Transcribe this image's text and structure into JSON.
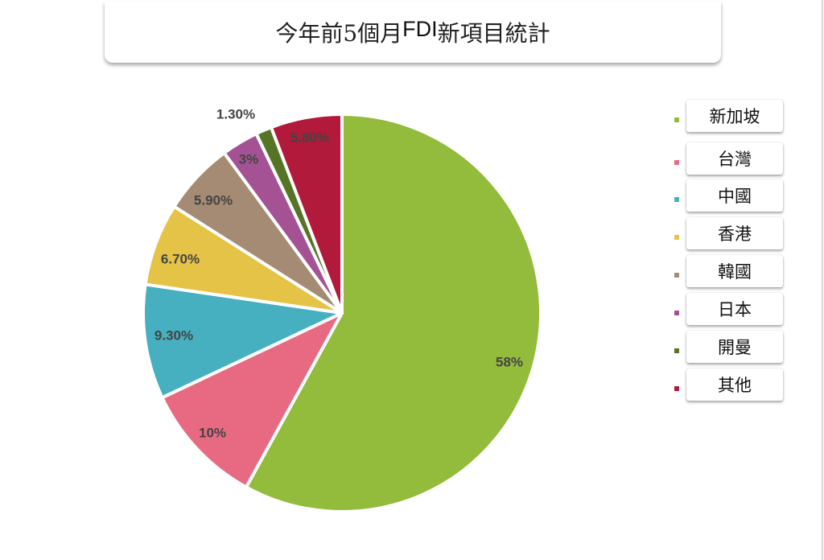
{
  "title": {
    "prefix": "今年前5個月",
    "highlight": "FDI",
    "suffix": "新項目統計"
  },
  "chart_data": {
    "type": "pie",
    "title": "今年前5個月FDI新項目統計",
    "start_angle": "12 o'clock, clockwise",
    "legend_position": "right",
    "categories": [
      "新加坡",
      "台灣",
      "中國",
      "香港",
      "韓國",
      "日本",
      "開曼",
      "其他"
    ],
    "values": [
      58,
      10,
      9.3,
      6.7,
      5.9,
      3,
      1.3,
      5.8
    ],
    "labels": [
      "58%",
      "10%",
      "9.30%",
      "6.70%",
      "5.90%",
      "3%",
      "1.30%",
      "5.80%"
    ],
    "colors": [
      "#93BB3C",
      "#E86A82",
      "#46AFC0",
      "#E4C347",
      "#A58B74",
      "#A45294",
      "#567426",
      "#B11A3A"
    ],
    "unit": "%"
  },
  "legend": {
    "items": [
      {
        "label": "新加坡",
        "color": "#93BB3C"
      },
      {
        "label": "台灣",
        "color": "#E86A82"
      },
      {
        "label": "中國",
        "color": "#46AFC0"
      },
      {
        "label": "香港",
        "color": "#E4C347"
      },
      {
        "label": "韓國",
        "color": "#A58B74"
      },
      {
        "label": "日本",
        "color": "#A45294"
      },
      {
        "label": "開曼",
        "color": "#567426"
      },
      {
        "label": "其他",
        "color": "#B11A3A"
      }
    ]
  }
}
